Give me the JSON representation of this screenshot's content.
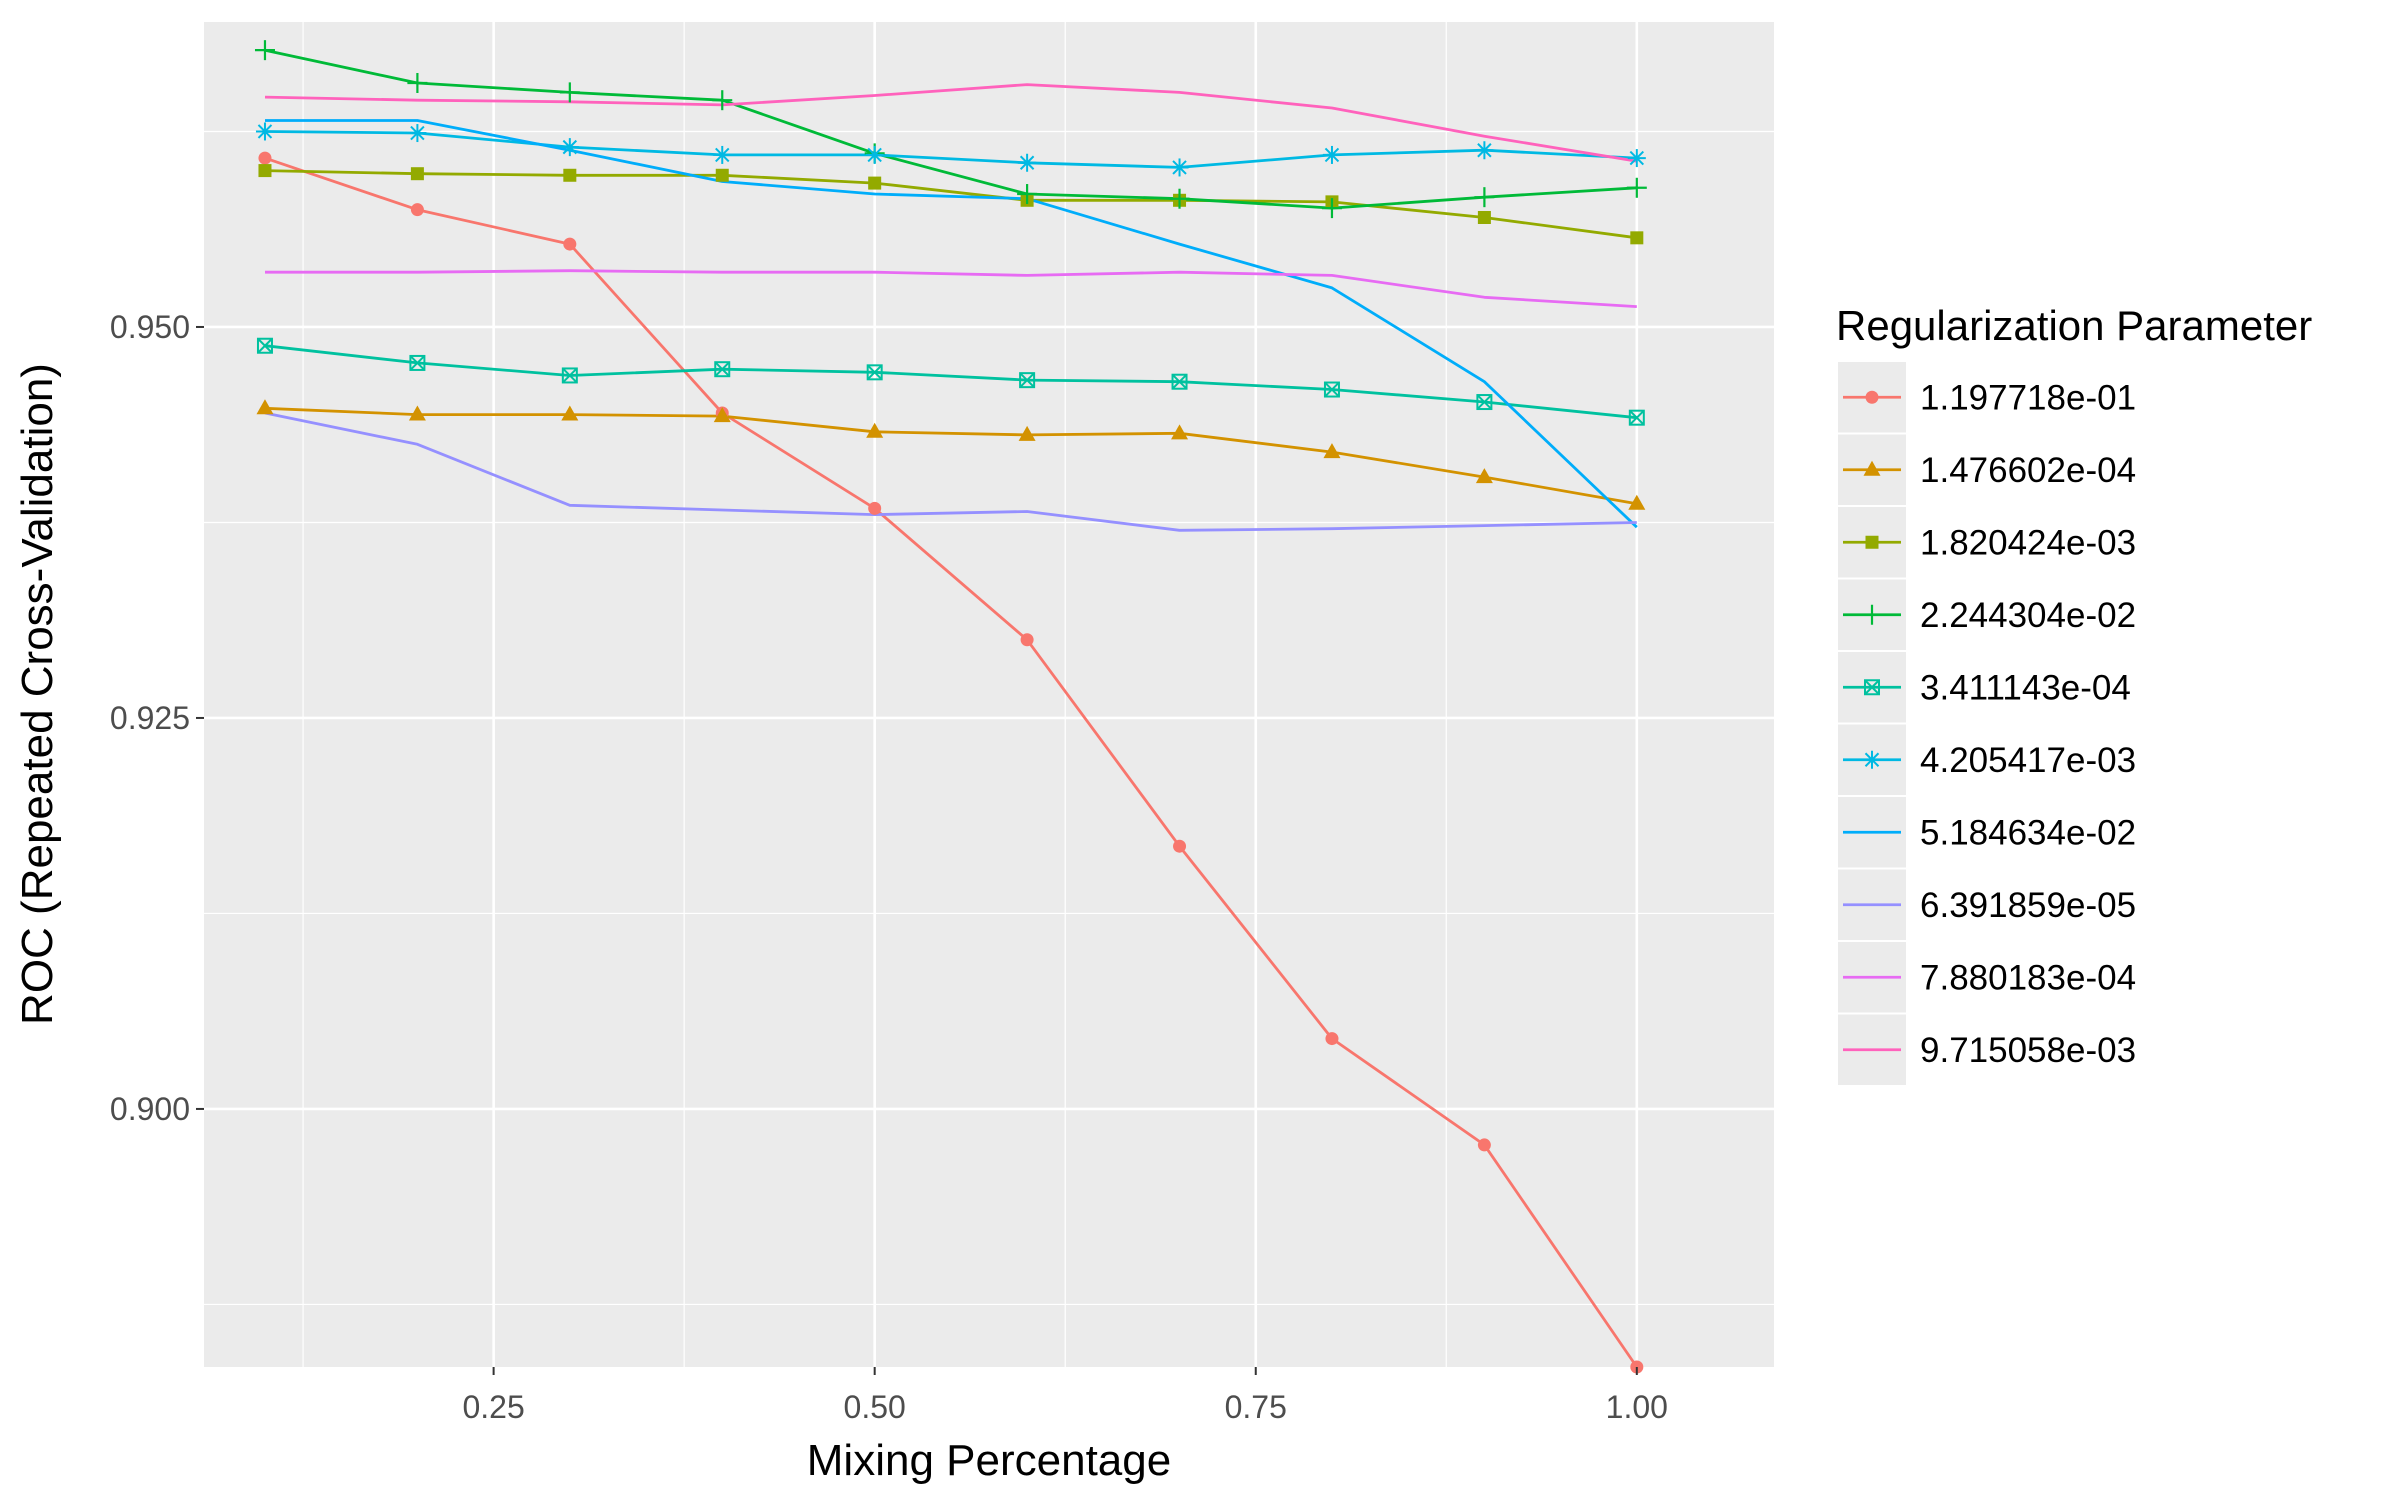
{
  "chart_data": {
    "type": "line",
    "xlabel": "Mixing Percentage",
    "ylabel": "ROC (Repeated Cross-Validation)",
    "xlim": [
      0.06,
      1.09
    ],
    "ylim": [
      0.8835,
      0.9695
    ],
    "x_ticks": [
      "0.25",
      "0.50",
      "0.75",
      "1.00"
    ],
    "y_ticks": [
      "0.900",
      "0.925",
      "0.950"
    ],
    "grid": true,
    "legend_position": "right",
    "legend_title": "Regularization Parameter",
    "x": [
      0.1,
      0.2,
      0.3,
      0.4,
      0.5,
      0.6,
      0.7,
      0.8,
      0.9,
      1.0
    ],
    "series": [
      {
        "name": "1.197718e-01",
        "color": "#F8766D",
        "marker": "circle",
        "values": [
          0.9608,
          0.9575,
          0.9553,
          0.9445,
          0.9384,
          0.93,
          0.9168,
          0.9045,
          0.8977,
          0.8835
        ]
      },
      {
        "name": "1.476602e-04",
        "color": "#D39200",
        "marker": "triangle",
        "values": [
          0.9448,
          0.9444,
          0.9444,
          0.9443,
          0.9433,
          0.9431,
          0.9432,
          0.942,
          0.9404,
          0.9387
        ]
      },
      {
        "name": "1.820424e-03",
        "color": "#93AA00",
        "marker": "square",
        "values": [
          0.96,
          0.9598,
          0.9597,
          0.9597,
          0.9592,
          0.9581,
          0.9581,
          0.958,
          0.957,
          0.9557
        ]
      },
      {
        "name": "2.244304e-02",
        "color": "#00BA38",
        "marker": "plus",
        "values": [
          0.9677,
          0.9656,
          0.965,
          0.9645,
          0.9611,
          0.9585,
          0.9582,
          0.9576,
          0.9583,
          0.9589
        ]
      },
      {
        "name": "3.411143e-04",
        "color": "#00C19F",
        "marker": "boxcross",
        "values": [
          0.9488,
          0.9477,
          0.9469,
          0.9473,
          0.9471,
          0.9466,
          0.9465,
          0.946,
          0.9452,
          0.9442
        ]
      },
      {
        "name": "4.205417e-03",
        "color": "#00B9E3",
        "marker": "asterisk",
        "values": [
          0.9625,
          0.9624,
          0.9615,
          0.961,
          0.961,
          0.9605,
          0.9602,
          0.961,
          0.9613,
          0.9608
        ]
      },
      {
        "name": "5.184634e-02",
        "color": "#00ADFA",
        "marker": "none",
        "values": [
          0.9632,
          0.9632,
          0.9613,
          0.9593,
          0.9585,
          0.9582,
          0.9553,
          0.9525,
          0.9465,
          0.9372
        ]
      },
      {
        "name": "6.391859e-05",
        "color": "#9590FF",
        "marker": "none",
        "values": [
          0.9445,
          0.9425,
          0.9386,
          0.9383,
          0.938,
          0.9382,
          0.937,
          0.9371,
          0.9373,
          0.9375
        ]
      },
      {
        "name": "7.880183e-04",
        "color": "#E76BF3",
        "marker": "none",
        "values": [
          0.9535,
          0.9535,
          0.9536,
          0.9535,
          0.9535,
          0.9533,
          0.9535,
          0.9533,
          0.9519,
          0.9513
        ]
      },
      {
        "name": "9.715058e-03",
        "color": "#FF62BC",
        "marker": "none",
        "values": [
          0.9647,
          0.9645,
          0.9644,
          0.9642,
          0.9648,
          0.9655,
          0.965,
          0.964,
          0.9622,
          0.9606
        ]
      }
    ]
  }
}
